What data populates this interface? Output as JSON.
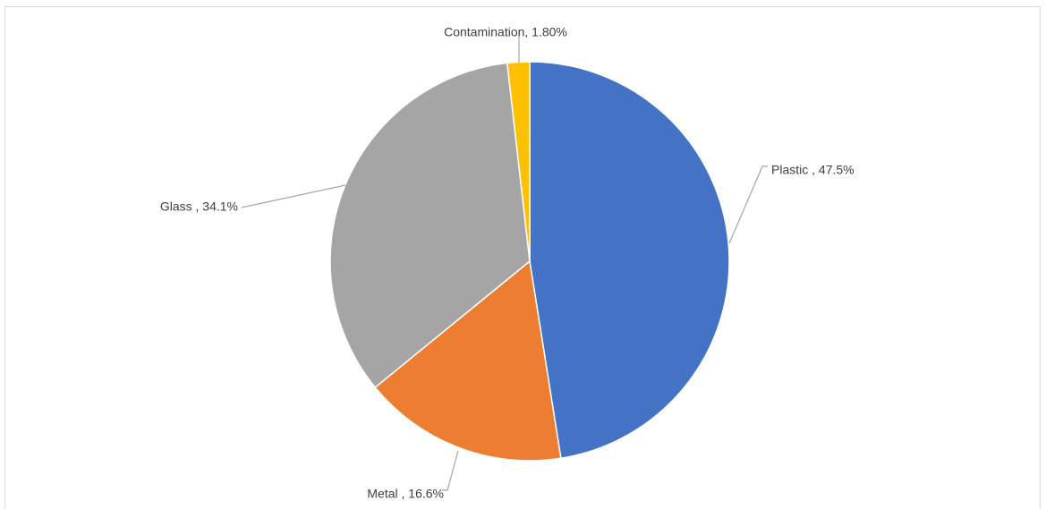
{
  "chart_data": {
    "type": "pie",
    "title": "",
    "slices": [
      {
        "label": "Plastic ",
        "value": 47.5,
        "value_label": "47.5%",
        "color": "#4472c4"
      },
      {
        "label": "Metal ",
        "value": 16.6,
        "value_label": "16.6%",
        "color": "#ed7d31"
      },
      {
        "label": "Glass ",
        "value": 34.1,
        "value_label": "34.1%",
        "color": "#a5a5a5"
      },
      {
        "label": "Contamination",
        "value": 1.8,
        "value_label": "1.80%",
        "color": "#ffc000"
      }
    ],
    "start_angle": "top, clockwise",
    "legend": "none",
    "data_labels": "outside with leader lines, 'category, value'"
  }
}
